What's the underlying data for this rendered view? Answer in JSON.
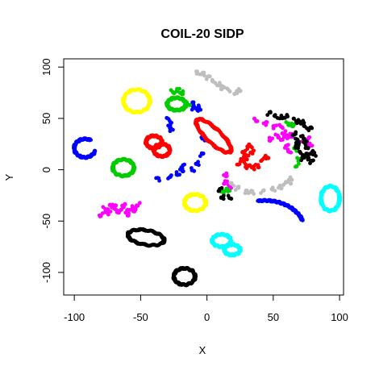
{
  "chart_data": {
    "type": "scatter",
    "title": "COIL-20 SIDP",
    "xlabel": "X",
    "ylabel": "Y",
    "xlim": [
      -108,
      103
    ],
    "ylim": [
      -122,
      108
    ],
    "xticks": [
      "-100",
      "-50",
      "0",
      "50",
      "100"
    ],
    "xtick_values": [
      -100,
      -50,
      0,
      50,
      100
    ],
    "yticks": [
      "-100",
      "-50",
      "0",
      "50",
      "100"
    ],
    "ytick_values": [
      -100,
      -50,
      0,
      50,
      100
    ],
    "grid": false,
    "legend": "none",
    "series": [
      {
        "color": "#ffff00",
        "shape": "ellipse",
        "center": [
          -53,
          67
        ],
        "radius": [
          10,
          11
        ],
        "rotation": 0,
        "note_arc": [
          0,
          360
        ]
      },
      {
        "color": "#ffff00",
        "shape": "ellipse",
        "center": [
          -9,
          -32
        ],
        "radius": [
          8,
          8
        ],
        "rotation": 0,
        "note_arc": [
          0,
          360
        ]
      },
      {
        "color": "#0000ff",
        "shape": "ellipse",
        "center": [
          -92,
          21
        ],
        "radius": [
          8,
          9
        ],
        "rotation": 0,
        "note_arc": [
          60,
          340
        ]
      },
      {
        "color": "#0000ff",
        "shape": "arc",
        "center": [
          44,
          -60
        ],
        "radius": [
          30,
          30
        ],
        "rotation": 0,
        "note_arc": [
          20,
          100
        ]
      },
      {
        "color": "#0000ff",
        "shape": "segments",
        "points": [
          [
            -29,
            49
          ],
          [
            -28,
            44
          ],
          [
            -27,
            39
          ],
          [
            -37,
            -9
          ],
          [
            -28,
            -7
          ],
          [
            -22,
            -4
          ],
          [
            -19,
            0
          ],
          [
            -18,
            4
          ],
          [
            -11,
            0
          ],
          [
            -7,
            6
          ],
          [
            -4,
            15
          ],
          [
            -3,
            30
          ],
          [
            -11,
            64
          ],
          [
            -10,
            60
          ],
          [
            -8,
            59
          ],
          [
            -7,
            61
          ],
          [
            -6,
            59
          ]
        ]
      },
      {
        "color": "#00cc00",
        "shape": "ellipse",
        "center": [
          -63,
          2
        ],
        "radius": [
          8,
          8
        ],
        "rotation": 0,
        "note_arc": [
          0,
          360
        ]
      },
      {
        "color": "#00cc00",
        "shape": "ellipse",
        "center": [
          -23,
          64
        ],
        "radius": [
          7,
          6
        ],
        "rotation": 0,
        "note_arc": [
          0,
          360
        ]
      },
      {
        "color": "#00cc00",
        "shape": "segments",
        "points": [
          [
            -26,
            76
          ],
          [
            -22,
            78
          ],
          [
            -19,
            75
          ],
          [
            -14,
            64
          ],
          [
            -17,
            60
          ],
          [
            12,
            -22
          ],
          [
            16,
            -20
          ],
          [
            65,
            33
          ],
          [
            67,
            20
          ],
          [
            69,
            10
          ],
          [
            68,
            4
          ],
          [
            61,
            45
          ],
          [
            65,
            44
          ]
        ]
      },
      {
        "color": "#ff0000",
        "shape": "ellipse",
        "center": [
          -40,
          27
        ],
        "radius": [
          6,
          6
        ],
        "rotation": 0,
        "note_arc": [
          0,
          360
        ]
      },
      {
        "color": "#ff0000",
        "shape": "ellipse",
        "center": [
          -34,
          19
        ],
        "radius": [
          6,
          6
        ],
        "rotation": 0,
        "note_arc": [
          0,
          360
        ]
      },
      {
        "color": "#ff0000",
        "shape": "ellipse",
        "center": [
          5,
          33
        ],
        "radius": [
          20,
          6
        ],
        "rotation": -52,
        "note_arc": [
          0,
          360
        ]
      },
      {
        "color": "#ff0000",
        "shape": "segments",
        "points": [
          [
            28,
            17
          ],
          [
            31,
            22
          ],
          [
            33,
            23
          ],
          [
            34,
            17
          ],
          [
            30,
            13
          ],
          [
            27,
            9
          ],
          [
            24,
            6
          ],
          [
            30,
            4
          ],
          [
            38,
            4
          ],
          [
            42,
            10
          ],
          [
            45,
            12
          ],
          [
            35,
            2
          ],
          [
            31,
            3
          ],
          [
            29,
            11
          ]
        ]
      },
      {
        "color": "#ff00ff",
        "shape": "segments",
        "points": [
          [
            -80,
            -44
          ],
          [
            -77,
            -38
          ],
          [
            -74,
            -42
          ],
          [
            -70,
            -36
          ],
          [
            -67,
            -41
          ],
          [
            -63,
            -35
          ],
          [
            -59,
            -40
          ],
          [
            -55,
            -37
          ],
          [
            -52,
            -34
          ],
          [
            -55,
            -39
          ],
          [
            -60,
            -43
          ],
          [
            -64,
            -38
          ],
          [
            -68,
            -40
          ],
          [
            -72,
            -35
          ],
          [
            -76,
            -40
          ],
          [
            37,
            48
          ],
          [
            44,
            45
          ],
          [
            51,
            42
          ],
          [
            56,
            42
          ],
          [
            58,
            36
          ],
          [
            48,
            30
          ],
          [
            53,
            33
          ],
          [
            57,
            30
          ],
          [
            61,
            32
          ],
          [
            64,
            34
          ],
          [
            76,
            30
          ],
          [
            78,
            24
          ],
          [
            73,
            27
          ],
          [
            60,
            23
          ],
          [
            62,
            18
          ],
          [
            14,
            -5
          ],
          [
            14,
            -12
          ],
          [
            17,
            -16
          ]
        ]
      },
      {
        "color": "#000000",
        "shape": "ellipse",
        "center": [
          -46,
          -66
        ],
        "radius": [
          14,
          7
        ],
        "rotation": -14,
        "note_arc": [
          0,
          360
        ]
      },
      {
        "color": "#000000",
        "shape": "ellipse",
        "center": [
          -17,
          -104
        ],
        "radius": [
          8,
          8
        ],
        "rotation": 0,
        "note_arc": [
          0,
          360
        ]
      },
      {
        "color": "#000000",
        "shape": "segments",
        "points": [
          [
            47,
            55
          ],
          [
            52,
            52
          ],
          [
            56,
            51
          ],
          [
            60,
            52
          ],
          [
            66,
            49
          ],
          [
            69,
            47
          ],
          [
            72,
            46
          ],
          [
            74,
            42
          ],
          [
            78,
            40
          ],
          [
            75,
            14
          ],
          [
            77,
            10
          ],
          [
            79,
            8
          ],
          [
            81,
            15
          ],
          [
            75,
            22
          ],
          [
            79,
            17
          ],
          [
            72,
            32
          ],
          [
            74,
            28
          ],
          [
            66,
            35
          ],
          [
            68,
            29
          ],
          [
            68,
            25
          ],
          [
            68,
            22
          ],
          [
            71,
            16
          ],
          [
            72,
            11
          ],
          [
            12,
            -27
          ],
          [
            17,
            -27
          ],
          [
            10,
            -19
          ]
        ]
      },
      {
        "color": "#bebebe",
        "shape": "segments",
        "points": [
          [
            -7,
            94
          ],
          [
            -3,
            93
          ],
          [
            1,
            90
          ],
          [
            5,
            86
          ],
          [
            9,
            83
          ],
          [
            12,
            80
          ],
          [
            16,
            78
          ],
          [
            22,
            75
          ],
          [
            24,
            77
          ],
          [
            19,
            -14
          ],
          [
            23,
            -18
          ],
          [
            30,
            -22
          ],
          [
            34,
            -22
          ],
          [
            42,
            -21
          ],
          [
            50,
            -19
          ],
          [
            55,
            -17
          ],
          [
            59,
            -13
          ],
          [
            62,
            -12
          ],
          [
            63,
            -9
          ]
        ]
      },
      {
        "color": "#00ffff",
        "shape": "ellipse",
        "center": [
          93,
          -28
        ],
        "radius": [
          7,
          12
        ],
        "rotation": 0,
        "note_arc": [
          0,
          360
        ]
      },
      {
        "color": "#00ffff",
        "shape": "ellipse",
        "center": [
          11,
          -69
        ],
        "radius": [
          7,
          6
        ],
        "rotation": 0,
        "note_arc": [
          0,
          360
        ]
      },
      {
        "color": "#00ffff",
        "shape": "ellipse",
        "center": [
          19,
          -78
        ],
        "radius": [
          6,
          5
        ],
        "rotation": 0,
        "note_arc": [
          0,
          360
        ]
      }
    ]
  }
}
